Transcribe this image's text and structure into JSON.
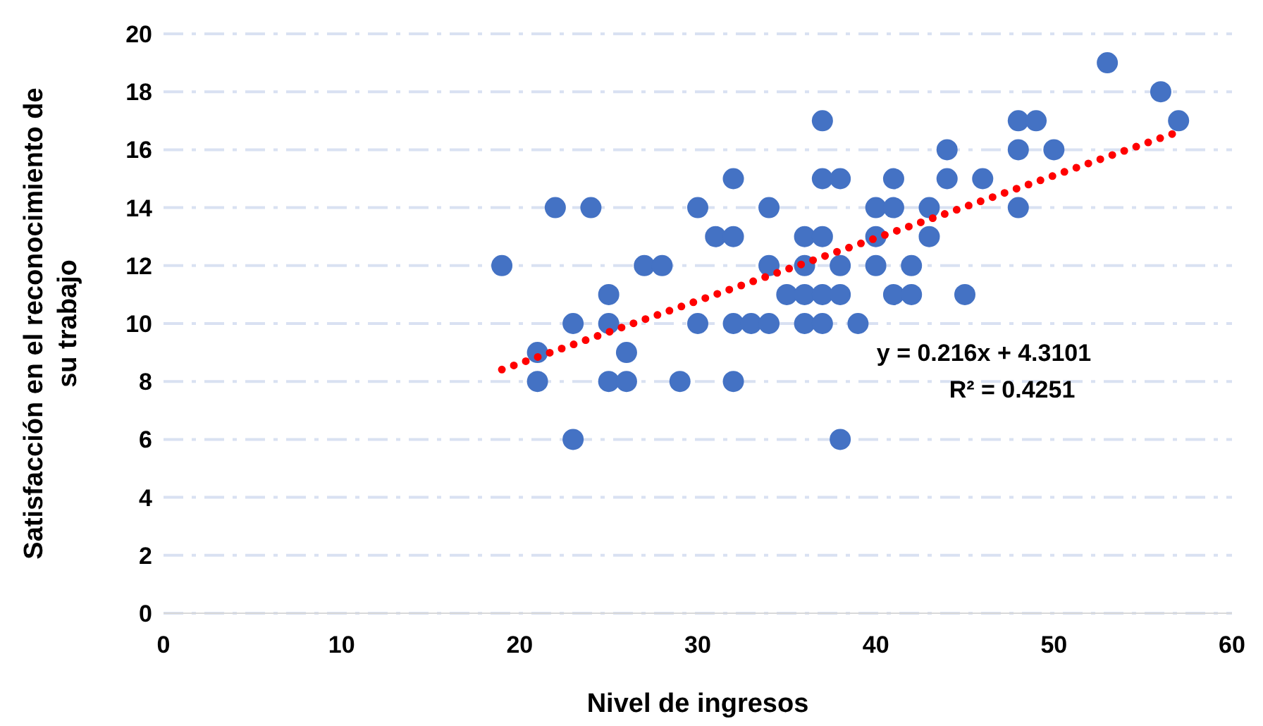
{
  "chart_data": {
    "type": "scatter",
    "xlabel": "Nivel de ingresos",
    "ylabel": "Satisfacción en el reconocimiento de su trabajo",
    "xlim": [
      0,
      60
    ],
    "xticks": [
      0,
      10,
      20,
      30,
      40,
      50,
      60
    ],
    "ylim": [
      0,
      20
    ],
    "yticks": [
      0,
      2,
      4,
      6,
      8,
      10,
      12,
      14,
      16,
      18,
      20
    ],
    "grid": "y",
    "marker": "circle",
    "annotations": [
      "y = 0.216x + 4.3101",
      "R² = 0.4251"
    ],
    "series": [
      {
        "color": "#4472c4",
        "x": [
          19,
          21,
          21,
          22,
          23,
          23,
          24,
          25,
          25,
          25,
          26,
          26,
          27,
          28,
          29,
          30,
          30,
          31,
          32,
          32,
          32,
          32,
          33,
          34,
          34,
          34,
          35,
          36,
          36,
          36,
          36,
          37,
          37,
          37,
          37,
          37,
          38,
          38,
          38,
          38,
          39,
          40,
          40,
          40,
          41,
          41,
          41,
          42,
          42,
          43,
          43,
          44,
          44,
          45,
          46,
          48,
          48,
          48,
          49,
          50,
          53,
          56,
          57
        ],
        "values": [
          12,
          9,
          8,
          14,
          10,
          6,
          14,
          11,
          10,
          8,
          9,
          8,
          12,
          12,
          8,
          14,
          10,
          13,
          13,
          15,
          10,
          8,
          10,
          14,
          12,
          10,
          11,
          13,
          12,
          11,
          10,
          17,
          15,
          13,
          11,
          10,
          15,
          12,
          11,
          6,
          10,
          14,
          13,
          12,
          15,
          14,
          11,
          12,
          11,
          14,
          13,
          16,
          15,
          11,
          15,
          17,
          16,
          14,
          17,
          16,
          19,
          18,
          17
        ]
      },
      {
        "type": "line",
        "color": "#ff0000",
        "line_style": "dotted",
        "marker": "none",
        "x": [
          19,
          57
        ],
        "values": [
          8.41,
          16.62
        ]
      }
    ]
  }
}
